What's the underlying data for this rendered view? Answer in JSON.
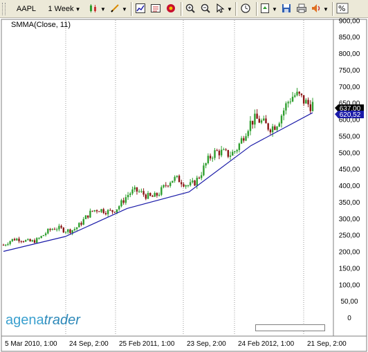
{
  "toolbar": {
    "instrument": "AAPL",
    "timeframe": "1 Week",
    "icons": [
      "candle-type-icon",
      "drawing-pen-icon",
      "chart-properties-icon",
      "indicator-icon",
      "gear-icon",
      "zoom-in-icon",
      "zoom-out-icon",
      "cursor-icon",
      "clock-icon",
      "template-icon",
      "save-icon",
      "print-icon",
      "sound-icon",
      "percent-icon"
    ]
  },
  "chart": {
    "indicator_label": "SMMA(Close, 11)",
    "y_axis_ticks": [
      "900,00",
      "850,00",
      "800,00",
      "750,00",
      "700,00",
      "650,00",
      "600,00",
      "550,00",
      "500,00",
      "450,00",
      "400,00",
      "350,00",
      "300,00",
      "250,00",
      "200,00",
      "150,00",
      "100,00",
      "50,00",
      "0"
    ],
    "x_axis_labels": [
      "5 Mar 2010, 1:00",
      "24 Sep, 2:00",
      "25 Feb 2011, 1:00",
      "23 Sep, 2:00",
      "24 Feb 2012, 1:00",
      "21 Sep, 2:00"
    ],
    "last_price_badge": "637,00",
    "smma_badge": "620,52",
    "colors": {
      "up": "#2e9e2e",
      "down": "#8b1414",
      "smma": "#1a1aa8",
      "price_badge": "#000000",
      "smma_badge": "#1a1aa8"
    }
  },
  "logo": {
    "part1": "agena",
    "part2": "trader"
  },
  "chart_data": {
    "type": "line",
    "title": "",
    "xlabel": "",
    "ylabel": "",
    "ylim": [
      0,
      900
    ],
    "x": [
      "2010-03-05",
      "2010-09-24",
      "2011-02-25",
      "2011-09-23",
      "2012-02-24",
      "2012-09-21"
    ],
    "series": [
      {
        "name": "SMMA(Close, 11)",
        "values": [
          200,
          245,
          330,
          380,
          520,
          620
        ]
      }
    ]
  }
}
